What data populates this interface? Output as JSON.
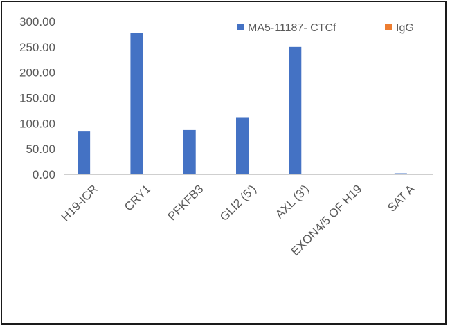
{
  "chart_data": {
    "type": "bar",
    "categories": [
      "H19-ICR",
      "CRY1",
      "PFKFB3",
      "GLI2 (5')",
      "AXL (3')",
      "EXON4/5 OF H19",
      "SAT A"
    ],
    "series": [
      {
        "name": "MA5-11187- CTCf",
        "color": "#4472C4",
        "values": [
          84,
          278,
          87,
          112,
          250,
          0,
          2
        ]
      },
      {
        "name": "IgG",
        "color": "#ED7D31",
        "values": [
          0,
          0,
          0,
          0,
          0,
          0,
          0
        ]
      }
    ],
    "ylim": [
      0,
      300
    ],
    "yticks": [
      "0.00",
      "50.00",
      "100.00",
      "150.00",
      "200.00",
      "250.00",
      "300.00"
    ],
    "grid": false,
    "legend_position": "top-right"
  }
}
